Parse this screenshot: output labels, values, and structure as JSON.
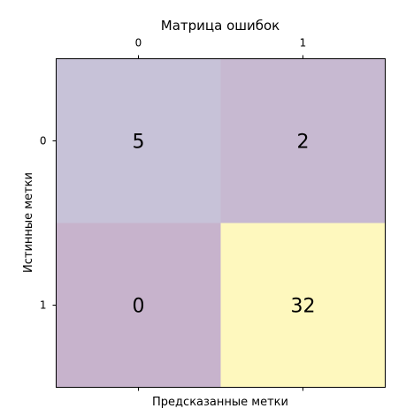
{
  "chart_data": {
    "type": "heatmap",
    "title": "Матрица ошибок",
    "xlabel": "Предсказанные метки",
    "ylabel": "Истинные метки",
    "x_categories": [
      "0",
      "1"
    ],
    "y_categories": [
      "0",
      "1"
    ],
    "values": [
      [
        5,
        2
      ],
      [
        0,
        32
      ]
    ],
    "colormap": [
      "#440154",
      "#fde725"
    ],
    "cell_alpha": 0.3,
    "x_ticks_position": "top"
  }
}
